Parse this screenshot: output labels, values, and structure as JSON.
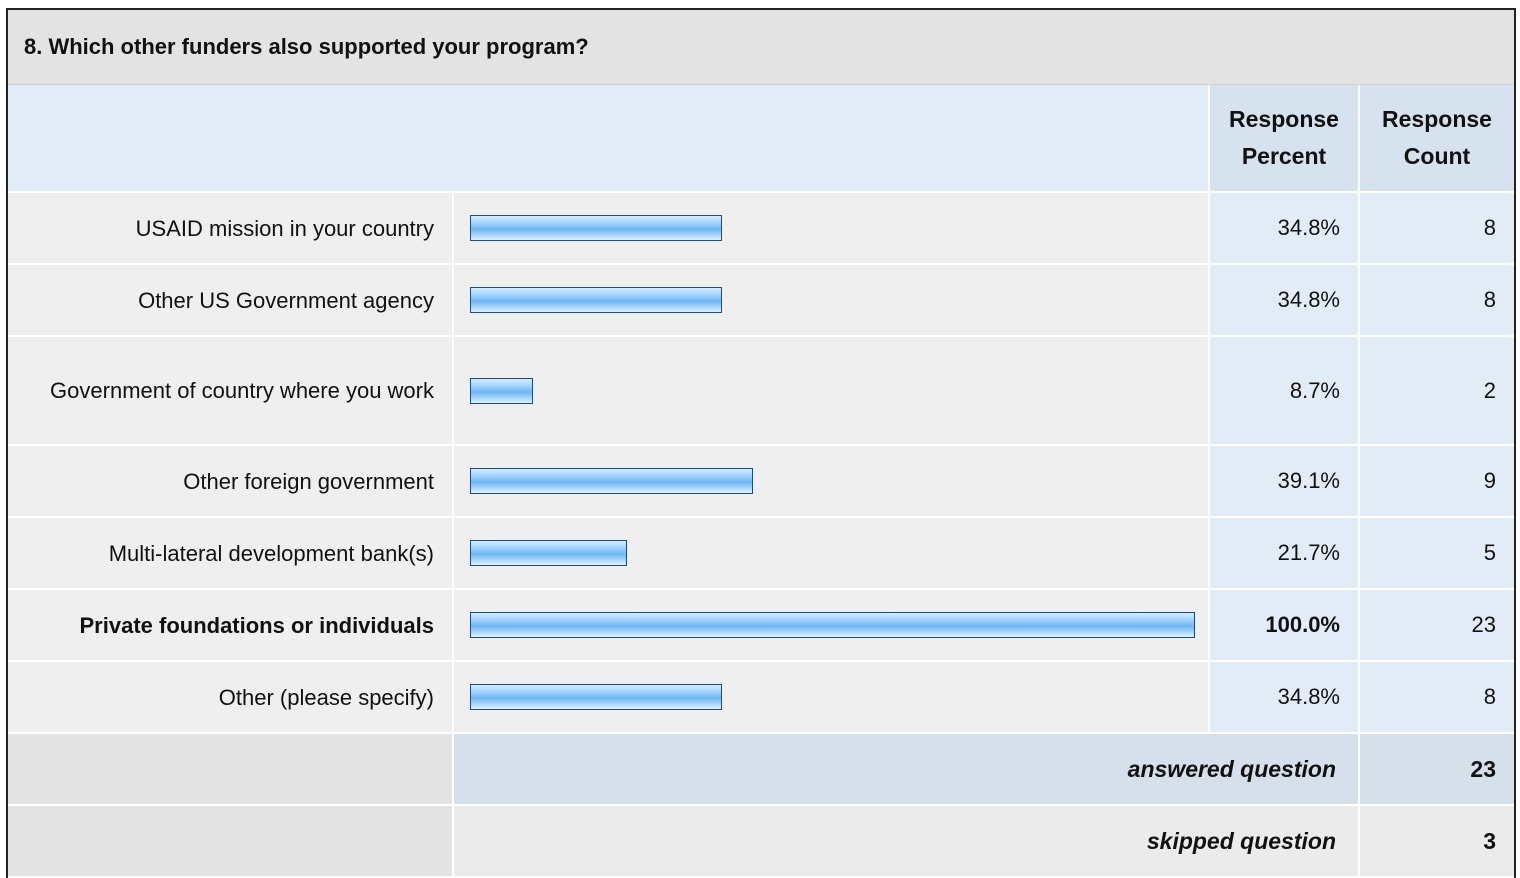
{
  "question": {
    "title": "8. Which other funders also supported your program?"
  },
  "header": {
    "response_percent": [
      "Response",
      "Percent"
    ],
    "response_count": [
      "Response",
      "Count"
    ]
  },
  "chart_data": {
    "type": "bar",
    "orientation": "horizontal",
    "categories": [
      "USAID mission in your country",
      "Other US Government agency",
      "Government of country where you work",
      "Other foreign government",
      "Multi-lateral development bank(s)",
      "Private foundations or individuals",
      "Other (please specify)"
    ],
    "percent_labels": [
      "34.8%",
      "34.8%",
      "8.7%",
      "39.1%",
      "21.7%",
      "100.0%",
      "34.8%"
    ],
    "values": [
      34.8,
      34.8,
      8.7,
      39.1,
      21.7,
      100.0,
      34.8
    ],
    "counts": [
      "8",
      "8",
      "2",
      "9",
      "5",
      "23",
      "8"
    ],
    "xlim": [
      0,
      100
    ],
    "highlight_index": 5,
    "bar_color": "#8cc8f8",
    "bar_border_color": "#1e4a86"
  },
  "summary": {
    "answered_label": "answered question",
    "answered_value": "23",
    "skipped_label": "skipped question",
    "skipped_value": "3"
  }
}
